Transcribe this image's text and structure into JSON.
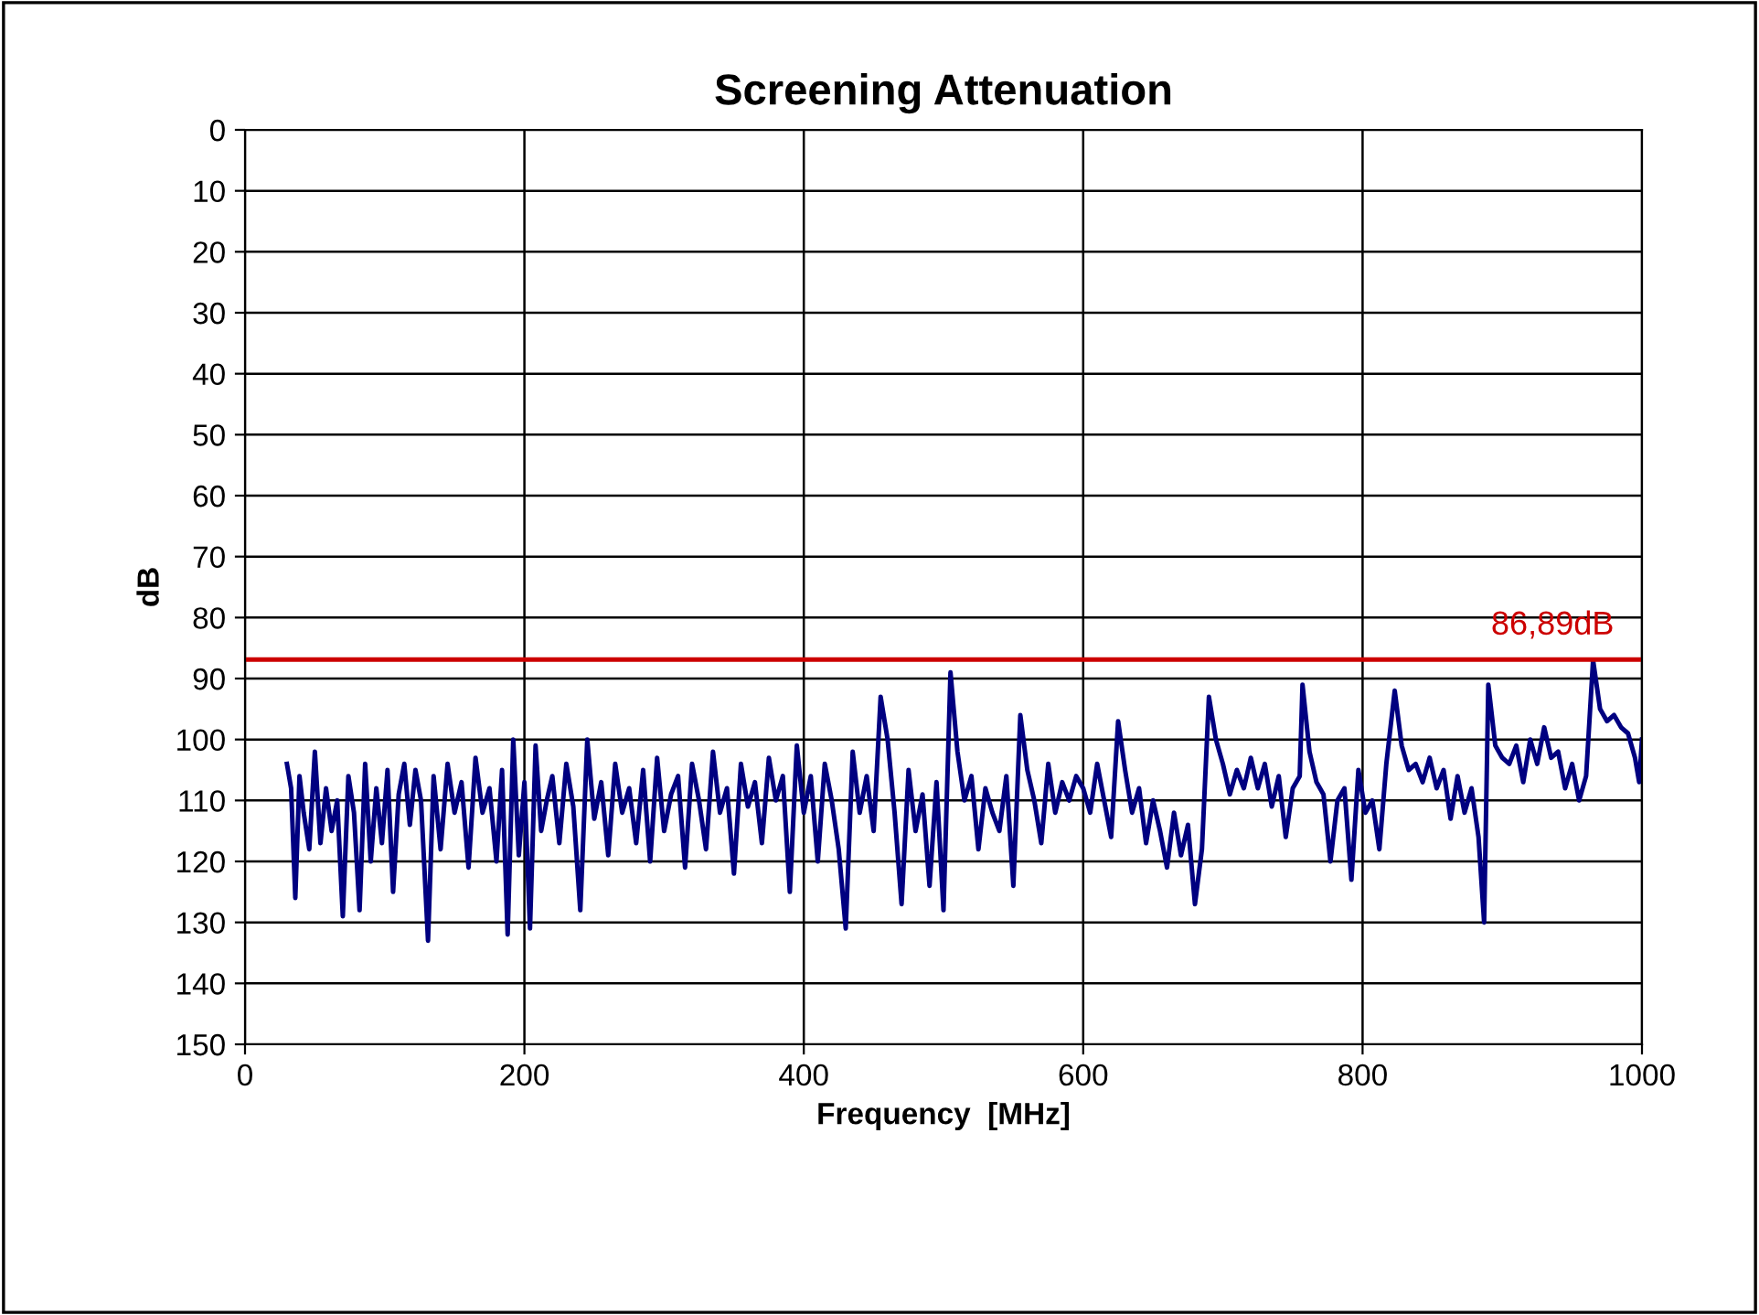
{
  "chart_data": {
    "type": "line",
    "title": "Screening Attenuation",
    "xlabel": "Frequency  [MHz]",
    "ylabel": "dB",
    "xlim": [
      0,
      1000
    ],
    "xticks": [
      0,
      200,
      400,
      600,
      800,
      1000
    ],
    "ylim": [
      150,
      0
    ],
    "yticks": [
      0,
      10,
      20,
      30,
      40,
      50,
      60,
      70,
      80,
      90,
      100,
      110,
      120,
      130,
      140,
      150
    ],
    "grid": true,
    "legend": false,
    "ref_lines": [
      {
        "axis": "y",
        "value": 86.89,
        "label": "86,89dB",
        "color": "#cc0000"
      }
    ],
    "series": [
      {
        "color": "#000080",
        "x": [
          30,
          33,
          36,
          39,
          42,
          46,
          50,
          54,
          58,
          62,
          66,
          70,
          74,
          78,
          82,
          86,
          90,
          94,
          98,
          102,
          106,
          110,
          114,
          118,
          122,
          126,
          131,
          135,
          140,
          145,
          150,
          155,
          160,
          165,
          170,
          175,
          180,
          184,
          188,
          192,
          196,
          200,
          204,
          208,
          212,
          216,
          220,
          225,
          230,
          235,
          240,
          245,
          250,
          255,
          260,
          265,
          270,
          275,
          280,
          285,
          290,
          295,
          300,
          305,
          310,
          315,
          320,
          325,
          330,
          335,
          340,
          345,
          350,
          355,
          360,
          365,
          370,
          375,
          380,
          385,
          390,
          395,
          400,
          405,
          410,
          415,
          420,
          425,
          430,
          435,
          440,
          445,
          450,
          455,
          460,
          465,
          470,
          475,
          480,
          485,
          490,
          495,
          500,
          505,
          510,
          515,
          520,
          525,
          530,
          535,
          540,
          545,
          550,
          555,
          560,
          565,
          570,
          575,
          580,
          585,
          590,
          595,
          600,
          605,
          610,
          615,
          620,
          625,
          630,
          635,
          640,
          645,
          650,
          655,
          660,
          665,
          670,
          675,
          680,
          685,
          690,
          695,
          700,
          705,
          710,
          715,
          720,
          725,
          730,
          735,
          740,
          745,
          750,
          755,
          757,
          762,
          767,
          772,
          777,
          782,
          787,
          792,
          797,
          802,
          807,
          812,
          817,
          823,
          828,
          833,
          838,
          843,
          848,
          853,
          858,
          863,
          868,
          873,
          878,
          883,
          887,
          890,
          895,
          900,
          905,
          910,
          915,
          920,
          925,
          930,
          935,
          940,
          945,
          950,
          955,
          960,
          965,
          970,
          975,
          980,
          985,
          990,
          995,
          998,
          1000
        ],
        "values": [
          104,
          108,
          126,
          106,
          112,
          118,
          102,
          117,
          108,
          115,
          110,
          129,
          106,
          112,
          128,
          104,
          120,
          108,
          117,
          105,
          125,
          109,
          104,
          114,
          105,
          110,
          133,
          106,
          118,
          104,
          112,
          107,
          121,
          103,
          112,
          108,
          120,
          105,
          132,
          100,
          119,
          107,
          131,
          101,
          115,
          110,
          106,
          117,
          104,
          111,
          128,
          100,
          113,
          107,
          119,
          104,
          112,
          108,
          117,
          105,
          120,
          103,
          115,
          109,
          106,
          121,
          104,
          110,
          118,
          102,
          112,
          108,
          122,
          104,
          111,
          107,
          117,
          103,
          110,
          106,
          125,
          101,
          112,
          106,
          120,
          104,
          110,
          118,
          131,
          102,
          112,
          106,
          115,
          93,
          100,
          112,
          127,
          105,
          115,
          109,
          124,
          107,
          128,
          89,
          102,
          110,
          106,
          118,
          108,
          112,
          115,
          106,
          124,
          96,
          105,
          110,
          117,
          104,
          112,
          107,
          110,
          106,
          108,
          112,
          104,
          110,
          116,
          97,
          105,
          112,
          108,
          117,
          110,
          115,
          121,
          112,
          119,
          114,
          127,
          118,
          93,
          100,
          104,
          109,
          105,
          108,
          103,
          108,
          104,
          111,
          106,
          116,
          108,
          106,
          91,
          102,
          107,
          109,
          120,
          110,
          108,
          123,
          105,
          112,
          110,
          118,
          104,
          92,
          101,
          105,
          104,
          107,
          103,
          108,
          105,
          113,
          106,
          112,
          108,
          116,
          130,
          91,
          101,
          103,
          104,
          101,
          107,
          100,
          104,
          98,
          103,
          102,
          108,
          104,
          110,
          106,
          87,
          95,
          97,
          96,
          98,
          99,
          103,
          107,
          100
        ]
      }
    ]
  }
}
